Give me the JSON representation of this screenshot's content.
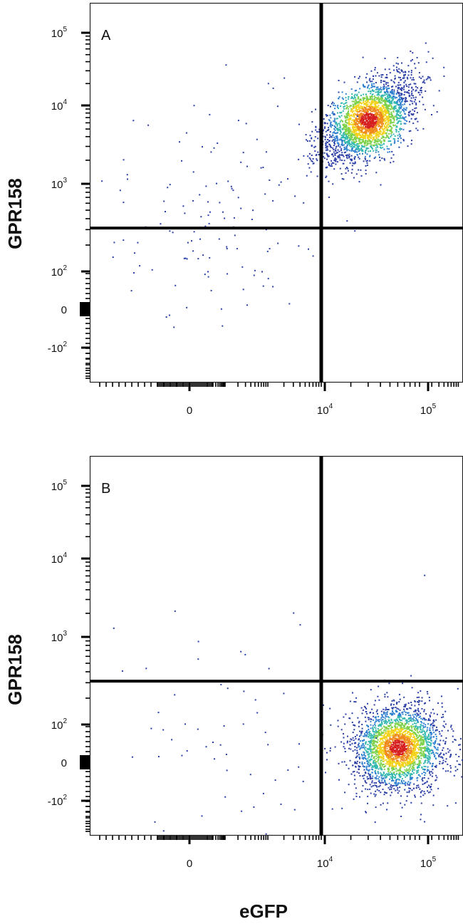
{
  "chart_data": {
    "type": "scatter",
    "subtype": "flow-cytometry-density-plot",
    "xlabel": "eGFP",
    "ylabel": "GPR158",
    "x_scale": "biexponential",
    "y_scale": "biexponential",
    "x_ticks": [
      {
        "label": "0",
        "exp": ""
      },
      {
        "label": "10",
        "exp": "4"
      },
      {
        "label": "10",
        "exp": "5"
      }
    ],
    "y_ticks": [
      {
        "label": "10",
        "exp": "5"
      },
      {
        "label": "10",
        "exp": "4"
      },
      {
        "label": "10",
        "exp": "3"
      },
      {
        "label": "10",
        "exp": "2"
      },
      {
        "label": "0",
        "exp": ""
      },
      {
        "label": "-10",
        "exp": "2"
      }
    ],
    "panels": [
      {
        "label": "A",
        "gate_x": 10000,
        "gate_y": 350,
        "populations": [
          {
            "name": "",
            "center_x": 30000,
            "center_y": 8000,
            "events": 2600,
            "color_hotspot": "#d62020"
          },
          {
            "name": "",
            "center_x": 1000,
            "center_y": 700,
            "events": 140,
            "sparse": true
          }
        ]
      },
      {
        "label": "B",
        "gate_x": 10000,
        "gate_y": 350,
        "populations": [
          {
            "name": "",
            "center_x": 60000,
            "center_y": 40,
            "events": 2600,
            "color_hotspot": "#d62020"
          },
          {
            "name": "",
            "center_x": 1000,
            "center_y": 60,
            "events": 70,
            "sparse": true
          }
        ]
      }
    ],
    "density_colors": [
      "#2b3fa6",
      "#2f7fd0",
      "#34b8b0",
      "#7ed14a",
      "#f2d21b",
      "#f08a1c",
      "#d62020"
    ],
    "grid": false,
    "legend": "none"
  }
}
